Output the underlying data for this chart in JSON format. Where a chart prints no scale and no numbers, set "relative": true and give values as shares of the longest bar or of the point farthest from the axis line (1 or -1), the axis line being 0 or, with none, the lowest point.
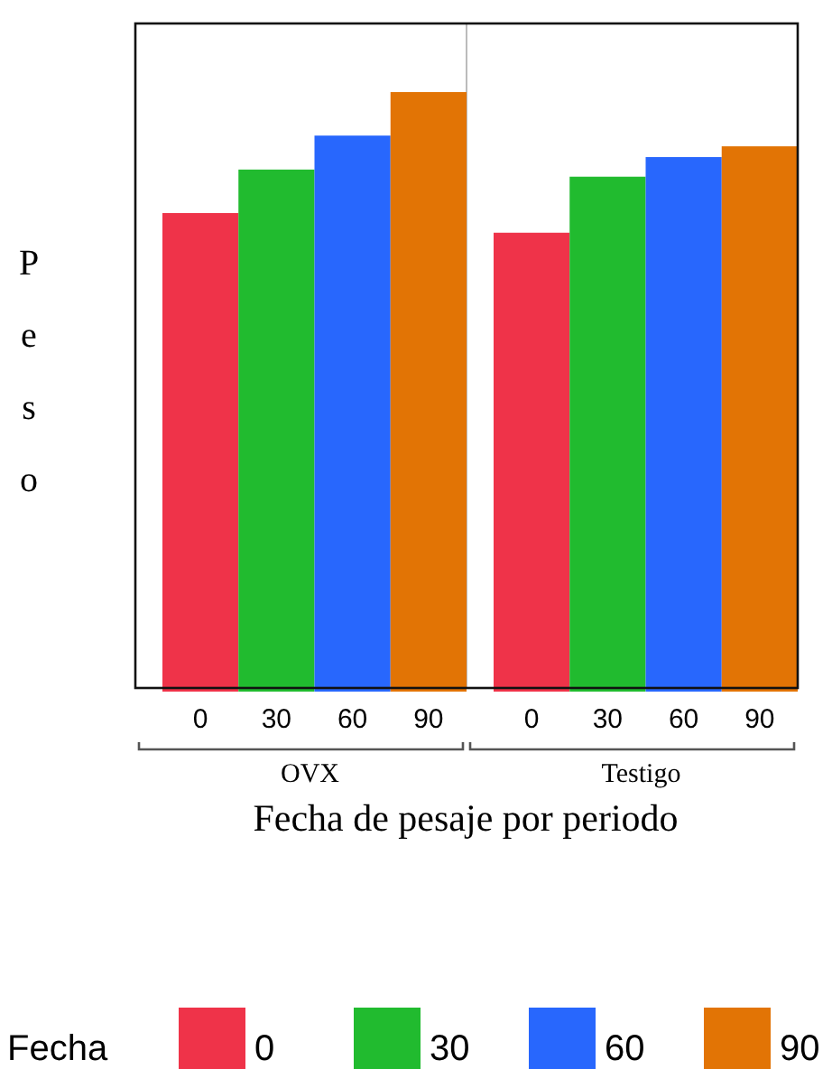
{
  "chart_data": {
    "type": "bar",
    "relative": true,
    "xlabel": "Fecha de pesaje por periodo",
    "ylabel": "Peso",
    "legend_title": "Fecha",
    "legend": "bottom",
    "categories": [
      "OVX",
      "Testigo"
    ],
    "series": [
      {
        "name": "0",
        "color": "#ef3349",
        "values": [
          0.797,
          0.764
        ]
      },
      {
        "name": "30",
        "color": "#21bb2f",
        "values": [
          0.87,
          0.858
        ]
      },
      {
        "name": "60",
        "color": "#2867fd",
        "values": [
          0.927,
          0.891
        ]
      },
      {
        "name": "90",
        "color": "#e27405",
        "values": [
          1,
          0.909
        ]
      }
    ]
  }
}
